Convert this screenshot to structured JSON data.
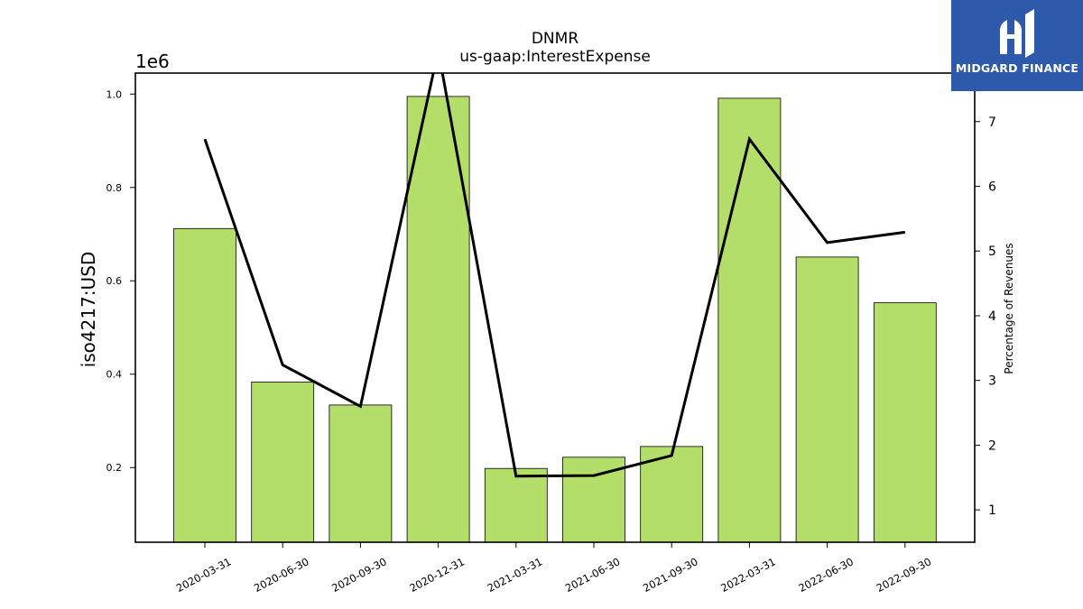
{
  "chart_data": {
    "type": "bar",
    "title": "DNMR",
    "subtitle": "us-gaap:InterestExpense",
    "ylabel": "iso4217:USD",
    "y2label": "Percentage of Revenues",
    "y_offset_label": "1e6",
    "categories": [
      "2020-03-31",
      "2020-06-30",
      "2020-09-30",
      "2020-12-31",
      "2021-03-31",
      "2021-06-30",
      "2021-09-30",
      "2022-03-31",
      "2022-06-30",
      "2022-09-30"
    ],
    "series": [
      {
        "type": "bar",
        "axis": "left",
        "values": [
          712000,
          383000,
          334000,
          995000,
          198000,
          222000,
          245000,
          991000,
          651000,
          553000
        ]
      },
      {
        "type": "line",
        "axis": "right",
        "values": [
          6.73,
          3.24,
          2.6,
          8.1,
          1.52,
          1.53,
          1.84,
          6.73,
          5.13,
          5.29
        ]
      }
    ],
    "ylim": [
      0.04,
      1.045
    ],
    "y2lim": [
      0.5,
      7.75
    ],
    "yticks": [
      "0.2",
      "0.4",
      "0.6",
      "0.8",
      "1.0"
    ],
    "y2ticks": [
      "1",
      "2",
      "3",
      "4",
      "5",
      "6",
      "7"
    ],
    "colors": {
      "bar_fill": "#b3de69",
      "bar_edge": "#000000",
      "line": "#000000",
      "logo_bg": "#2d5aab"
    }
  },
  "logo": {
    "text": "MIDGARD FINANCE"
  }
}
